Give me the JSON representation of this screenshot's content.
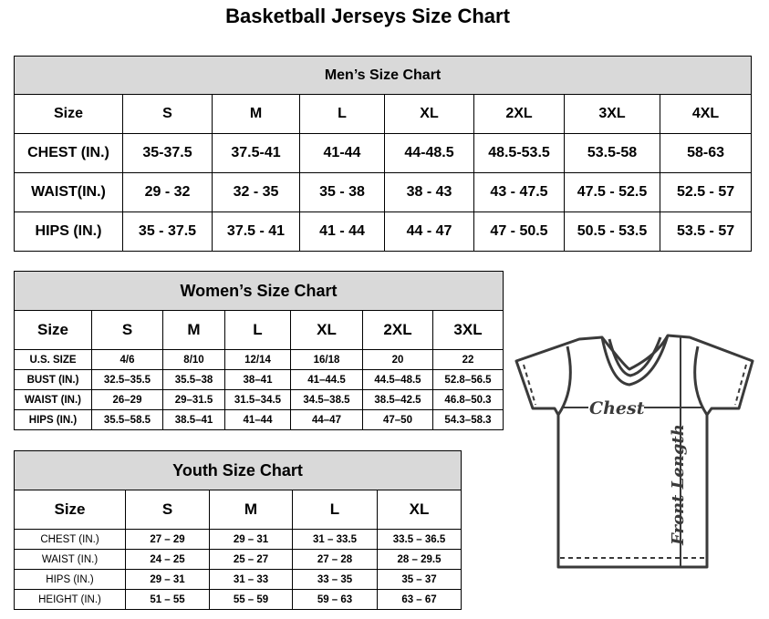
{
  "title": "Basketball Jerseys Size Chart",
  "men": {
    "heading": "Men’s Size Chart",
    "rows": [
      [
        "Size",
        "S",
        "M",
        "L",
        "XL",
        "2XL",
        "3XL",
        "4XL"
      ],
      [
        "CHEST (IN.)",
        "35-37.5",
        "37.5-41",
        "41-44",
        "44-48.5",
        "48.5-53.5",
        "53.5-58",
        "58-63"
      ],
      [
        "WAIST(IN.)",
        "29 - 32",
        "32 - 35",
        "35 - 38",
        "38 - 43",
        "43 - 47.5",
        "47.5 - 52.5",
        "52.5 - 57"
      ],
      [
        "HIPS (IN.)",
        "35 - 37.5",
        "37.5 - 41",
        "41 - 44",
        "44 - 47",
        "47 - 50.5",
        "50.5 - 53.5",
        "53.5 - 57"
      ]
    ]
  },
  "women": {
    "heading": "Women’s Size Chart",
    "rows": [
      [
        "Size",
        "S",
        "M",
        "L",
        "XL",
        "2XL",
        "3XL"
      ],
      [
        "U.S.  SIZE",
        "4/6",
        "8/10",
        "12/14",
        "16/18",
        "20",
        "22"
      ],
      [
        "BUST  (IN.)",
        "32.5–35.5",
        "35.5–38",
        "38–41",
        "41–44.5",
        "44.5–48.5",
        "52.8–56.5"
      ],
      [
        "WAIST  (IN.)",
        "26–29",
        "29–31.5",
        "31.5–34.5",
        "34.5–38.5",
        "38.5–42.5",
        "46.8–50.3"
      ],
      [
        "HIPS  (IN.)",
        "35.5–58.5",
        "38.5–41",
        "41–44",
        "44–47",
        "47–50",
        "54.3–58.3"
      ]
    ]
  },
  "youth": {
    "heading": "Youth Size Chart",
    "rows": [
      [
        "Size",
        "S",
        "M",
        "L",
        "XL"
      ],
      [
        "CHEST  (IN.)",
        "27  –  29",
        "29  –  31",
        "31  –  33.5",
        "33.5  –  36.5"
      ],
      [
        "WAIST  (IN.)",
        "24  –  25",
        "25  –  27",
        "27  –  28",
        "28  –  29.5"
      ],
      [
        "HIPS  (IN.)",
        "29  –  31",
        "31  –  33",
        "33  –  35",
        "35  –  37"
      ],
      [
        "HEIGHT  (IN.)",
        "51  –  55",
        "55  –  59",
        "59  –  63",
        "63  –  67"
      ]
    ]
  },
  "diagram": {
    "chest_label": "Chest",
    "length_label": "Front Length",
    "line_color": "#3a3a3a"
  }
}
